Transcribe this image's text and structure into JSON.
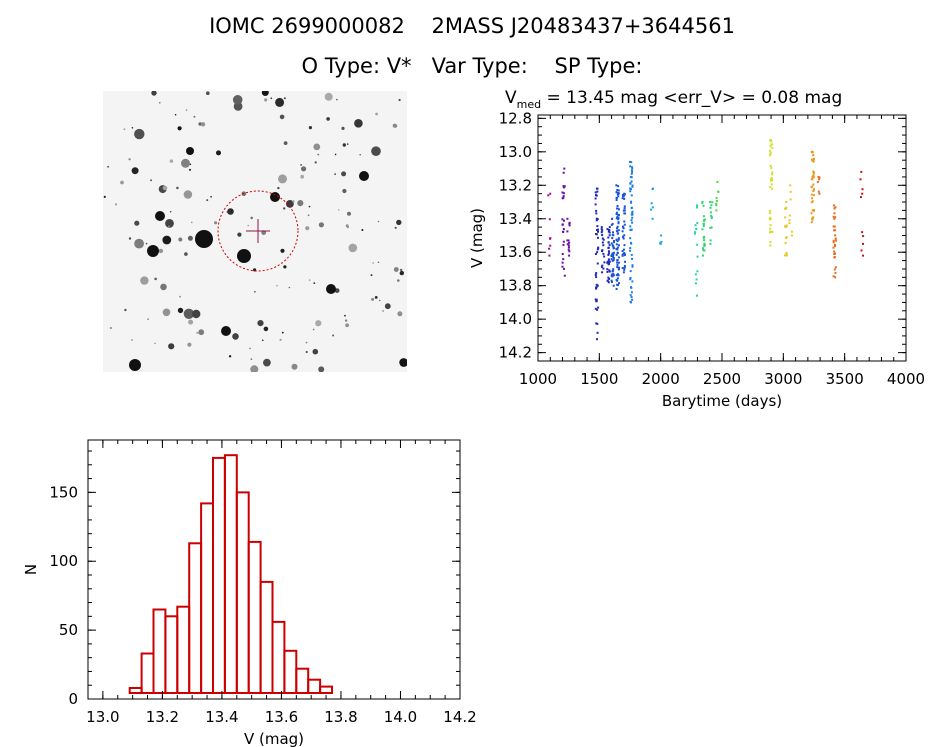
{
  "title": {
    "ids": "IOMC 2699000082    2MASS J20483437+3644561",
    "types": "O Type: V*   Var Type:    SP Type:"
  },
  "sky_image": {
    "marker_color": "#cc0000"
  },
  "chart_data": [
    {
      "type": "scatter",
      "subtitle_prefix": "V",
      "subtitle_sub": "med",
      "subtitle_rest": " = 13.45 mag <err_V> = 0.08 mag",
      "xlabel": "Barytime (days)",
      "ylabel": "V (mag)",
      "xlim": [
        1000,
        4000
      ],
      "ylim": [
        14.25,
        12.78
      ],
      "x_ticks": [
        1000,
        1500,
        2000,
        2500,
        3000,
        3500,
        4000
      ],
      "y_ticks": [
        12.8,
        13.0,
        13.2,
        13.4,
        13.6,
        13.8,
        14.0,
        14.2
      ],
      "x_tick_labels": [
        "1000",
        "1500",
        "2000",
        "2500",
        "3000",
        "3500",
        "4000"
      ],
      "y_tick_labels": [
        "12.8",
        "13.0",
        "13.2",
        "13.4",
        "13.6",
        "13.8",
        "14.0",
        "14.2"
      ],
      "color_encoding": "rainbow by time (violet early to red late)",
      "groups": [
        {
          "x": 1090,
          "y_min": 13.25,
          "y_max": 13.62,
          "n": 8
        },
        {
          "x": 1210,
          "y_min": 13.1,
          "y_max": 13.74,
          "n": 25
        },
        {
          "x": 1250,
          "y_min": 13.4,
          "y_max": 13.62,
          "n": 14
        },
        {
          "x": 1480,
          "y_min": 13.22,
          "y_max": 14.12,
          "n": 45
        },
        {
          "x": 1530,
          "y_min": 13.45,
          "y_max": 13.72,
          "n": 18
        },
        {
          "x": 1575,
          "y_min": 13.45,
          "y_max": 13.78,
          "n": 35
        },
        {
          "x": 1610,
          "y_min": 13.4,
          "y_max": 13.8,
          "n": 40
        },
        {
          "x": 1650,
          "y_min": 13.2,
          "y_max": 13.82,
          "n": 70
        },
        {
          "x": 1700,
          "y_min": 13.25,
          "y_max": 13.72,
          "n": 40
        },
        {
          "x": 1760,
          "y_min": 13.06,
          "y_max": 13.9,
          "n": 55
        },
        {
          "x": 1930,
          "y_min": 13.22,
          "y_max": 13.4,
          "n": 6
        },
        {
          "x": 2000,
          "y_min": 13.5,
          "y_max": 13.55,
          "n": 4
        },
        {
          "x": 2290,
          "y_min": 13.32,
          "y_max": 13.86,
          "n": 14
        },
        {
          "x": 2350,
          "y_min": 13.3,
          "y_max": 13.62,
          "n": 22
        },
        {
          "x": 2410,
          "y_min": 13.3,
          "y_max": 13.55,
          "n": 12
        },
        {
          "x": 2460,
          "y_min": 13.18,
          "y_max": 13.35,
          "n": 8
        },
        {
          "x": 2900,
          "y_min": 12.93,
          "y_max": 13.56,
          "n": 35
        },
        {
          "x": 3020,
          "y_min": 13.3,
          "y_max": 13.62,
          "n": 18
        },
        {
          "x": 3060,
          "y_min": 13.2,
          "y_max": 13.5,
          "n": 8
        },
        {
          "x": 3240,
          "y_min": 13.0,
          "y_max": 13.42,
          "n": 40
        },
        {
          "x": 3290,
          "y_min": 13.15,
          "y_max": 13.25,
          "n": 6
        },
        {
          "x": 3420,
          "y_min": 13.32,
          "y_max": 13.75,
          "n": 30
        },
        {
          "x": 3640,
          "y_min": 13.12,
          "y_max": 13.62,
          "n": 10
        }
      ]
    },
    {
      "type": "bar",
      "subtitle": "histogram",
      "xlabel": "V (mag)",
      "ylabel": "N",
      "xlim": [
        12.95,
        14.2
      ],
      "ylim": [
        0,
        188
      ],
      "x_ticks": [
        13.0,
        13.2,
        13.4,
        13.6,
        13.8,
        14.0,
        14.2
      ],
      "y_ticks": [
        0,
        50,
        100,
        150
      ],
      "x_tick_labels": [
        "13.0",
        "13.2",
        "13.4",
        "13.6",
        "13.8",
        "14.0",
        "14.2"
      ],
      "y_tick_labels": [
        "0",
        "50",
        "100",
        "150"
      ],
      "bin_width": 0.04,
      "bin_starts": [
        12.97,
        13.01,
        13.05,
        13.09,
        13.13,
        13.17,
        13.21,
        13.25,
        13.29,
        13.33,
        13.37,
        13.41,
        13.45,
        13.49,
        13.53,
        13.57,
        13.61,
        13.65,
        13.69,
        13.73,
        13.77,
        13.81,
        13.85,
        13.89,
        13.93,
        13.97,
        14.01,
        14.05,
        14.09
      ],
      "values": [
        1,
        2,
        3,
        8,
        33,
        65,
        60,
        67,
        113,
        142,
        175,
        177,
        150,
        114,
        85,
        56,
        35,
        22,
        14,
        9,
        4,
        2,
        0,
        2,
        2,
        0,
        0,
        2,
        0
      ],
      "bar_color": "#cc0000"
    }
  ]
}
